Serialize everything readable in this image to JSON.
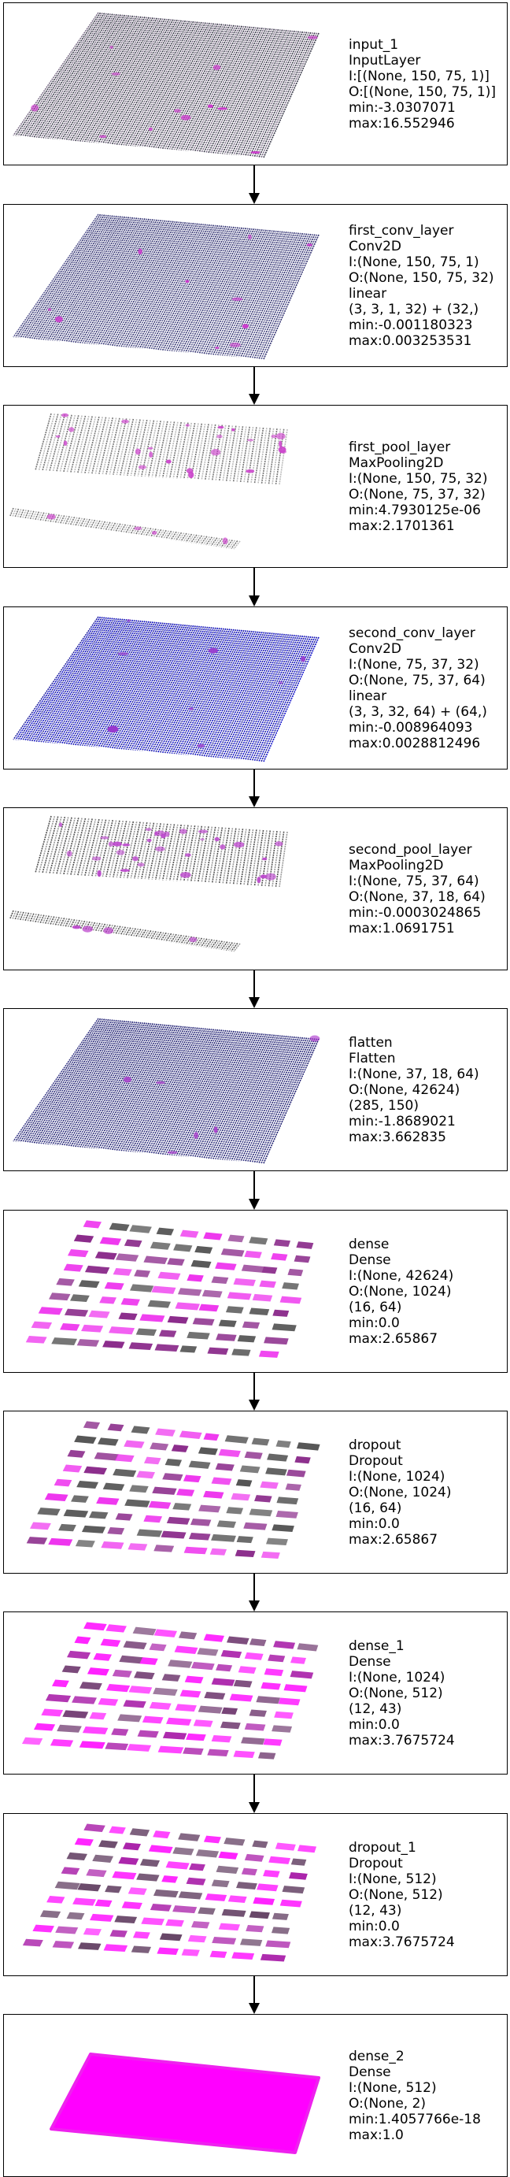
{
  "layers": [
    {
      "name": "input_1",
      "type": "InputLayer",
      "lines": [
        "I:[(None, 150, 75, 1)]",
        "O:[(None, 150, 75, 1)]",
        "min:-3.0307071",
        "max:16.552946"
      ],
      "viz": {
        "style": "grid",
        "colors": [
          "#3a3a4a",
          "#7a6d86"
        ],
        "accent": "#cc33cc",
        "accent_density": 0.03
      }
    },
    {
      "name": "first_conv_layer",
      "type": "Conv2D",
      "lines": [
        "I:(None, 150, 75, 1)",
        "O:(None, 150, 75, 32)",
        "linear",
        "(3, 3, 1, 32) + (32,)",
        "min:-0.001180323",
        "max:0.003253531"
      ],
      "viz": {
        "style": "grid",
        "colors": [
          "#2f2f6e",
          "#55558f"
        ],
        "accent": "#cc33cc",
        "accent_density": 0.025
      }
    },
    {
      "name": "first_pool_layer",
      "type": "MaxPooling2D",
      "lines": [
        "I:(None, 150, 75, 32)",
        "O:(None, 75, 37, 32)",
        "min:4.7930125e-06",
        "max:2.1701361"
      ],
      "viz": {
        "style": "split",
        "colors": [
          "#bbbbbb",
          "#777777"
        ],
        "accent": "#cc44cc",
        "accent_density": 0.06
      }
    },
    {
      "name": "second_conv_layer",
      "type": "Conv2D",
      "lines": [
        "I:(None, 75, 37, 32)",
        "O:(None, 75, 37, 64)",
        "linear",
        "(3, 3, 32, 64) + (64,)",
        "min:-0.008964093",
        "max:0.0028812496"
      ],
      "viz": {
        "style": "grid",
        "colors": [
          "#1010c8",
          "#2020a0"
        ],
        "accent": "#9933cc",
        "accent_density": 0.02
      }
    },
    {
      "name": "second_pool_layer",
      "type": "MaxPooling2D",
      "lines": [
        "I:(None, 75, 37, 64)",
        "O:(None, 37, 18, 64)",
        "min:-0.0003024865",
        "max:1.0691751"
      ],
      "viz": {
        "style": "split",
        "colors": [
          "#999999",
          "#555555"
        ],
        "accent": "#bb44cc",
        "accent_density": 0.08
      }
    },
    {
      "name": "flatten",
      "type": "Flatten",
      "lines": [
        "I:(None, 37, 18, 64)",
        "O:(None, 42624)",
        "(285, 150)",
        "min:-1.8689021",
        "max:3.662835"
      ],
      "viz": {
        "style": "grid",
        "colors": [
          "#202070",
          "#3a3a88"
        ],
        "accent": "#aa33cc",
        "accent_density": 0.015
      }
    },
    {
      "name": "dense",
      "type": "Dense",
      "lines": [
        "I:(None, 42624)",
        "O:(None, 1024)",
        "(16, 64)",
        "min:0.0",
        "max:2.65867"
      ],
      "viz": {
        "style": "blocks",
        "colors": [
          "#8a2a8a",
          "#555555"
        ],
        "accent": "#ee33ee",
        "accent_density": 0.35
      }
    },
    {
      "name": "dropout",
      "type": "Dropout",
      "lines": [
        "I:(None, 1024)",
        "O:(None, 1024)",
        "(16, 64)",
        "min:0.0",
        "max:2.65867"
      ],
      "viz": {
        "style": "blocks",
        "colors": [
          "#8a2a8a",
          "#555555"
        ],
        "accent": "#ee33ee",
        "accent_density": 0.35
      }
    },
    {
      "name": "dense_1",
      "type": "Dense",
      "lines": [
        "I:(None, 1024)",
        "O:(None, 512)",
        "(12, 43)",
        "min:0.0",
        "max:3.7675724"
      ],
      "viz": {
        "style": "blocks",
        "colors": [
          "#aa22aa",
          "#774477"
        ],
        "accent": "#ff22ff",
        "accent_density": 0.5
      }
    },
    {
      "name": "dropout_1",
      "type": "Dropout",
      "lines": [
        "I:(None, 512)",
        "O:(None, 512)",
        "(12, 43)",
        "min:0.0",
        "max:3.7675724"
      ],
      "viz": {
        "style": "blocks",
        "colors": [
          "#aa22aa",
          "#664466"
        ],
        "accent": "#ff22ff",
        "accent_density": 0.45
      }
    },
    {
      "name": "dense_2",
      "type": "Dense",
      "lines": [
        "I:(None, 512)",
        "O:(None, 2)",
        "min:1.4057766e-18",
        "max:1.0"
      ],
      "viz": {
        "style": "solid",
        "colors": [
          "#ff00ff",
          "#ee22ee"
        ],
        "accent": "#ff00ff",
        "accent_density": 1
      }
    }
  ]
}
